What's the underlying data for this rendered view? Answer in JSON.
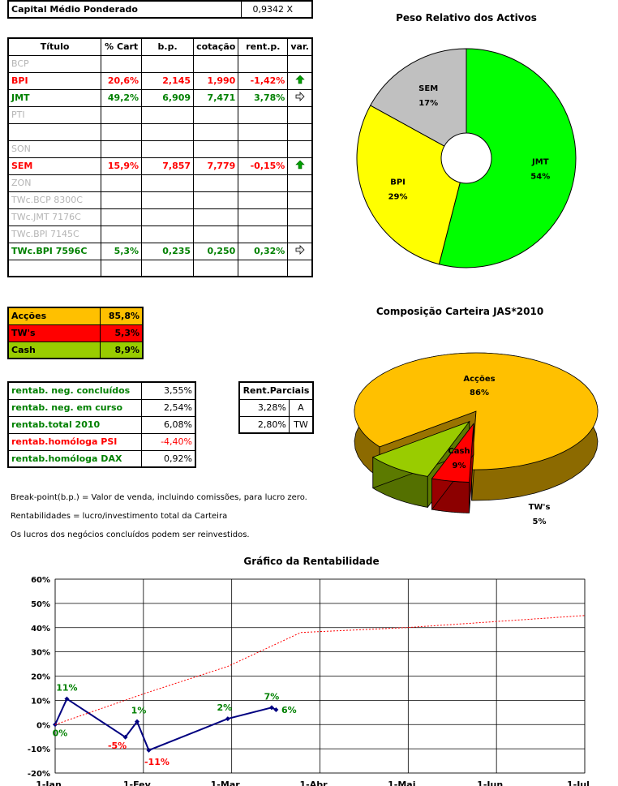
{
  "capital": {
    "label": "Capital Médio Ponderado",
    "value": "0,9342 X"
  },
  "assets_table": {
    "headers": [
      "Título",
      "% Cart",
      "b.p.",
      "cotação",
      "rent.p.",
      "var."
    ],
    "rows": [
      {
        "name": "BCP",
        "style": "grey",
        "cart": "",
        "bp": "",
        "cot": "",
        "rent": "",
        "var": ""
      },
      {
        "name": "BPI",
        "style": "red",
        "cart": "20,6%",
        "bp": "2,145",
        "cot": "1,990",
        "rent": "-1,42%",
        "var": "up-arrow-icon"
      },
      {
        "name": "JMT",
        "style": "green",
        "cart": "49,2%",
        "bp": "6,909",
        "cot": "7,471",
        "rent": "3,78%",
        "var": "right-arrow-icon"
      },
      {
        "name": "PTI",
        "style": "grey",
        "cart": "",
        "bp": "",
        "cot": "",
        "rent": "",
        "var": ""
      },
      {
        "name": "",
        "style": "grey",
        "cart": "",
        "bp": "",
        "cot": "",
        "rent": "",
        "var": ""
      },
      {
        "name": "SON",
        "style": "grey",
        "cart": "",
        "bp": "",
        "cot": "",
        "rent": "",
        "var": ""
      },
      {
        "name": "SEM",
        "style": "red",
        "cart": "15,9%",
        "bp": "7,857",
        "cot": "7,779",
        "rent": "-0,15%",
        "var": "up-arrow-icon"
      },
      {
        "name": "ZON",
        "style": "grey",
        "cart": "",
        "bp": "",
        "cot": "",
        "rent": "",
        "var": ""
      },
      {
        "name": "TWc.BCP 8300C",
        "style": "grey",
        "cart": "",
        "bp": "",
        "cot": "",
        "rent": "",
        "var": ""
      },
      {
        "name": "TWc.JMT 7176C",
        "style": "grey",
        "cart": "",
        "bp": "",
        "cot": "",
        "rent": "",
        "var": ""
      },
      {
        "name": "TWc.BPI 7145C",
        "style": "grey",
        "cart": "",
        "bp": "",
        "cot": "",
        "rent": "",
        "var": ""
      },
      {
        "name": "TWc.BPI 7596C",
        "style": "green",
        "cart": "5,3%",
        "bp": "0,235",
        "cot": "0,250",
        "rent": "0,32%",
        "var": "right-arrow-icon"
      },
      {
        "name": "",
        "style": "grey",
        "cart": "",
        "bp": "",
        "cot": "",
        "rent": "",
        "var": ""
      }
    ]
  },
  "composition_table": {
    "rows": [
      {
        "label": "Acções",
        "value": "85,8%",
        "bg": "#ffc000"
      },
      {
        "label": "TW's",
        "value": "5,3%",
        "bg": "#ff0000"
      },
      {
        "label": "Cash",
        "value": "8,9%",
        "bg": "#99cc00"
      }
    ]
  },
  "returns_table": {
    "rows": [
      {
        "label": "rentab. neg. concluídos",
        "value": "3,55%",
        "style": "green"
      },
      {
        "label": "rentab. neg. em curso",
        "value": "2,54%",
        "style": "green"
      },
      {
        "label": "rentab.total 2010",
        "value": "6,08%",
        "style": "green"
      },
      {
        "label": "rentab.homóloga PSI",
        "value": "-4,40%",
        "style": "red"
      },
      {
        "label": "rentab.homóloga DAX",
        "value": "0,92%",
        "style": "green"
      }
    ]
  },
  "partial_table": {
    "header": "Rent.Parciais",
    "rows": [
      {
        "value": "3,28%",
        "tag": "A"
      },
      {
        "value": "2,80%",
        "tag": "TW"
      }
    ]
  },
  "notes": [
    "Break-point(b.p.) = Valor de venda, incluindo comissões, para lucro zero.",
    "Rentabilidades = lucro/investimento total da Carteira",
    "Os lucros dos negócios concluídos podem ser reinvestidos."
  ],
  "chart_data": [
    {
      "type": "pie",
      "title": "Peso Relativo dos Activos",
      "style": "donut",
      "slices": [
        {
          "label": "JMT",
          "percent_label": "54%",
          "value": 54,
          "color": "#00ff00"
        },
        {
          "label": "BPI",
          "percent_label": "29%",
          "value": 29,
          "color": "#ffff00"
        },
        {
          "label": "SEM",
          "percent_label": "17%",
          "value": 17,
          "color": "#c0c0c0"
        }
      ]
    },
    {
      "type": "pie",
      "title": "Composição Carteira JAS*2010",
      "style": "3d-exploded",
      "slices": [
        {
          "label": "Acções",
          "percent_label": "86%",
          "value": 86,
          "color": "#ffc000"
        },
        {
          "label": "TW's",
          "percent_label": "5%",
          "value": 5,
          "color": "#ff0000"
        },
        {
          "label": "Cash",
          "percent_label": "9%",
          "value": 9,
          "color": "#99cc00"
        }
      ]
    },
    {
      "type": "line",
      "title": "Gráfico da Rentabilidade",
      "x_ticks": [
        "1-Jan",
        "1-Fev",
        "1-Mar",
        "1-Abr",
        "1-Mai",
        "1-Jun",
        "1-Jul"
      ],
      "x_domain_days": [
        0,
        181
      ],
      "y_ticks": [
        "-20%",
        "-10%",
        "0%",
        "10%",
        "20%",
        "30%",
        "40%",
        "50%",
        "60%"
      ],
      "ylim": [
        -20,
        60
      ],
      "grid": true,
      "series": [
        {
          "style": "solid",
          "color": "#000080",
          "points": [
            {
              "x": 0,
              "y": 0,
              "label": "0%",
              "label_color": "#008000"
            },
            {
              "x": 4,
              "y": 10.6,
              "label": "11%",
              "label_color": "#008000"
            },
            {
              "x": 24,
              "y": -5.2,
              "label": "-5%",
              "label_color": "#ff0000"
            },
            {
              "x": 28,
              "y": 1.2,
              "label": "1%",
              "label_color": "#008000"
            },
            {
              "x": 32,
              "y": -10.6,
              "label": "-11%",
              "label_color": "#ff0000"
            },
            {
              "x": 59,
              "y": 2.4,
              "label": "2%",
              "label_color": "#008000"
            },
            {
              "x": 74,
              "y": 7.0,
              "label": "7%",
              "label_color": "#008000"
            },
            {
              "x": 75.5,
              "y": 6.1,
              "label": "6%",
              "label_color": "#008000"
            }
          ]
        },
        {
          "style": "dotted",
          "color": "#ff0000",
          "points": [
            {
              "x": 0,
              "y": 0
            },
            {
              "x": 31,
              "y": 13
            },
            {
              "x": 59,
              "y": 24
            },
            {
              "x": 84,
              "y": 38
            },
            {
              "x": 120,
              "y": 40
            },
            {
              "x": 181,
              "y": 45
            }
          ]
        }
      ]
    }
  ]
}
